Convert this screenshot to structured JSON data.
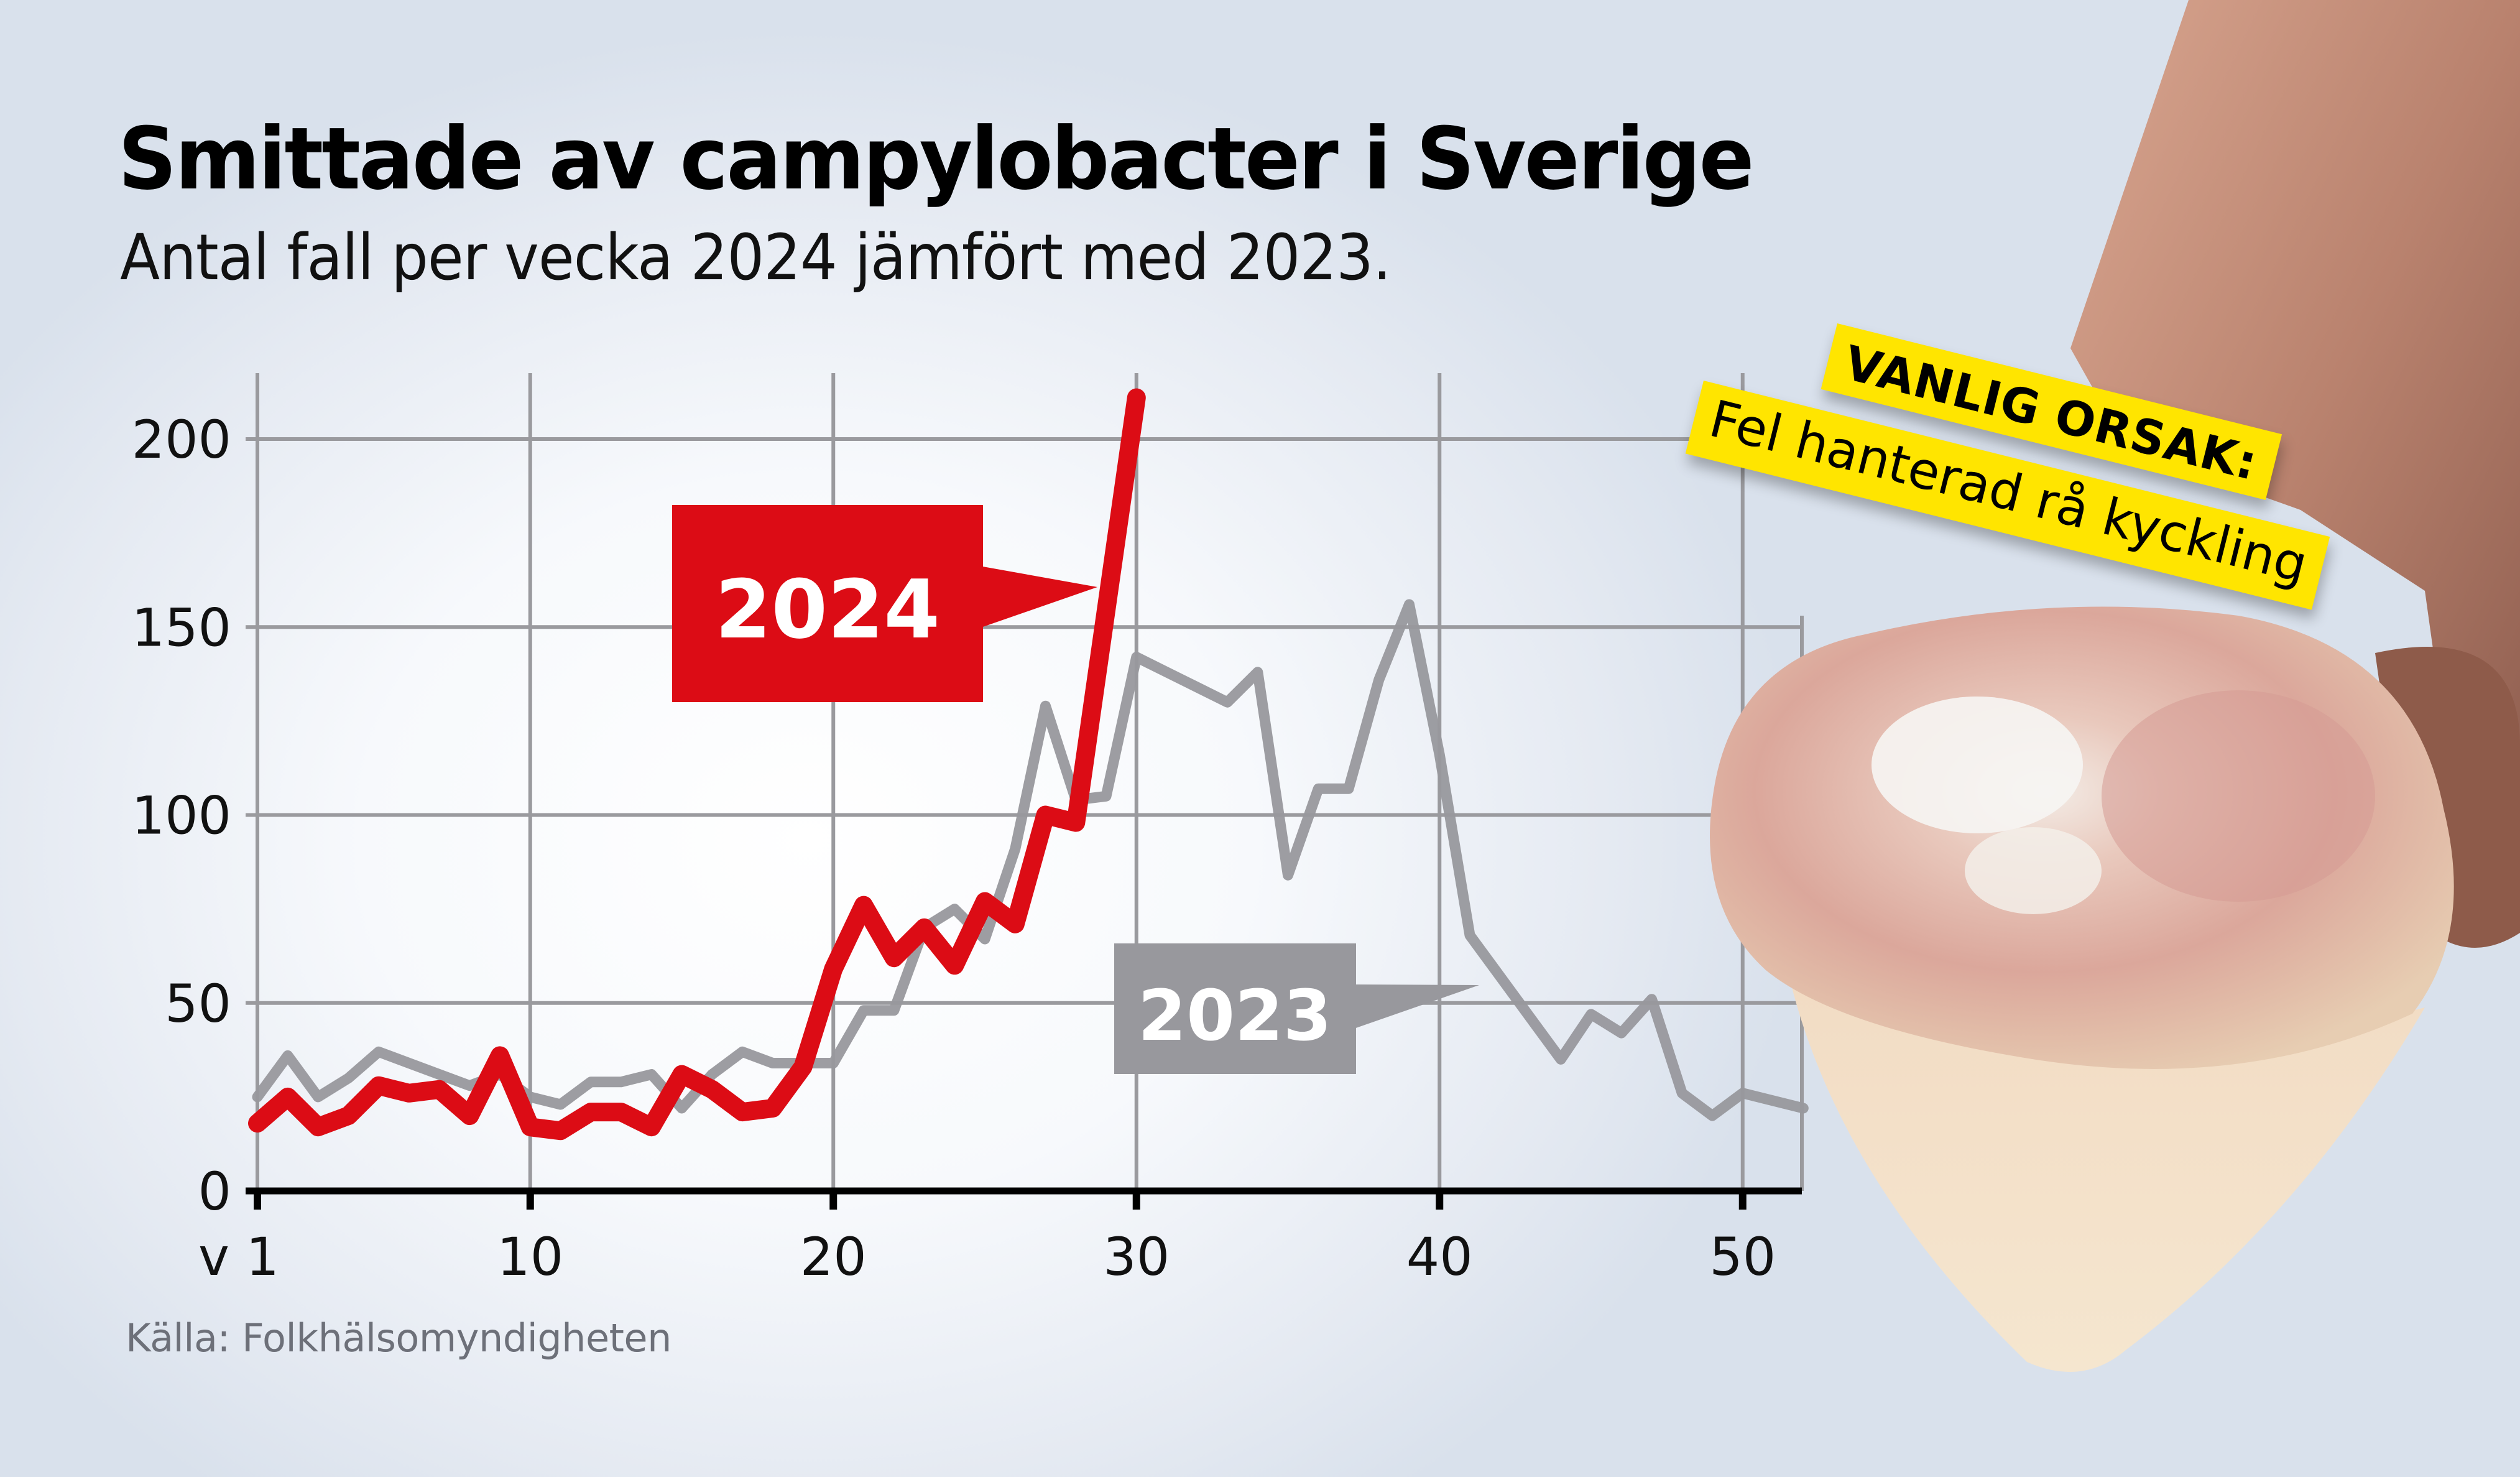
{
  "header": {
    "title": "Smittade av campylobacter i Sverige",
    "subtitle": "Antal fall per vecka 2024 jämfört med 2023."
  },
  "source": "Källa: Folkhälsomyndigheten",
  "callout": {
    "headline": "VANLIG ORSAK:",
    "text": "Fel hanterad rå kyckling",
    "background": "#ffe500"
  },
  "series_labels": {
    "s2024": "2024",
    "s2023": "2023"
  },
  "colors": {
    "s2024": "#dc0c15",
    "s2023": "#98989d",
    "grid": "#9a9a9e",
    "axis": "#000000"
  },
  "chart_data": {
    "type": "line",
    "title": "Smittade av campylobacter i Sverige",
    "subtitle": "Antal fall per vecka 2024 jämfört med 2023.",
    "xlabel": "Vecka",
    "ylabel": "Antal fall",
    "x_tick_labels": [
      "v 1",
      "10",
      "20",
      "30",
      "40",
      "50"
    ],
    "x_ticks": [
      1,
      10,
      20,
      30,
      40,
      50
    ],
    "y_ticks": [
      0,
      50,
      100,
      150,
      200
    ],
    "ylim": [
      0,
      215
    ],
    "xlim": [
      1,
      52
    ],
    "grid": true,
    "legend": "inline labels (2024 red callout, 2023 gray callout)",
    "x": [
      1,
      2,
      3,
      4,
      5,
      6,
      7,
      8,
      9,
      10,
      11,
      12,
      13,
      14,
      15,
      16,
      17,
      18,
      19,
      20,
      21,
      22,
      23,
      24,
      25,
      26,
      27,
      28,
      29,
      30,
      31,
      32,
      33,
      34,
      35,
      36,
      37,
      38,
      39,
      40,
      41,
      42,
      43,
      44,
      45,
      46,
      47,
      48,
      49,
      50,
      51,
      52
    ],
    "series": [
      {
        "name": "2024",
        "color": "#dc0c15",
        "values": [
          18,
          25,
          17,
          20,
          28,
          26,
          27,
          20,
          36,
          17,
          16,
          21,
          21,
          17,
          31,
          27,
          21,
          22,
          33,
          59,
          76,
          62,
          70,
          60,
          77,
          71,
          100,
          98,
          155,
          211
        ]
      },
      {
        "name": "2023",
        "color": "#98989d",
        "values": [
          25,
          36,
          25,
          30,
          37,
          34,
          31,
          28,
          31,
          25,
          23,
          29,
          29,
          31,
          22,
          31,
          37,
          34,
          34,
          34,
          48,
          48,
          70,
          75,
          67,
          91,
          129,
          104,
          105,
          142,
          138,
          134,
          130,
          138,
          84,
          107,
          107,
          136,
          156,
          116,
          68,
          57,
          46,
          35,
          47,
          42,
          51,
          26,
          20,
          26,
          24,
          22
        ]
      }
    ],
    "source": "Källa: Folkhälsomyndigheten"
  }
}
